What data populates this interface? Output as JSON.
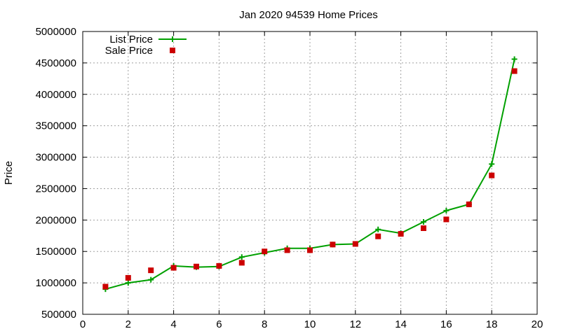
{
  "chart_data": {
    "type": "line",
    "title": "Jan 2020 94539 Home Prices",
    "xlabel": "",
    "ylabel": "Price",
    "xlim": [
      0,
      20
    ],
    "ylim": [
      500000,
      5000000
    ],
    "x_ticks": [
      "0",
      "2",
      "4",
      "6",
      "8",
      "10",
      "12",
      "14",
      "16",
      "18",
      "20"
    ],
    "y_ticks": [
      "500000",
      "1000000",
      "1500000",
      "2000000",
      "2500000",
      "3000000",
      "3500000",
      "4000000",
      "4500000",
      "5000000"
    ],
    "grid": true,
    "legend_position": "top-left",
    "series": [
      {
        "name": "List Price",
        "style": "line with plus markers",
        "color": "#00a000",
        "x": [
          1,
          2,
          3,
          4,
          5,
          6,
          7,
          8,
          9,
          10,
          11,
          12,
          13,
          14,
          15,
          16,
          17,
          18,
          19
        ],
        "y": [
          900000,
          1000000,
          1050000,
          1270000,
          1250000,
          1260000,
          1410000,
          1480000,
          1550000,
          1550000,
          1610000,
          1620000,
          1850000,
          1790000,
          1970000,
          2150000,
          2250000,
          2890000,
          4560000
        ]
      },
      {
        "name": "Sale Price",
        "style": "square markers",
        "color": "#cc0000",
        "x": [
          1,
          2,
          3,
          4,
          5,
          6,
          7,
          8,
          9,
          10,
          11,
          12,
          13,
          14,
          15,
          16,
          17,
          18,
          19
        ],
        "y": [
          940000,
          1080000,
          1200000,
          1240000,
          1260000,
          1270000,
          1320000,
          1500000,
          1520000,
          1520000,
          1610000,
          1620000,
          1740000,
          1780000,
          1870000,
          2010000,
          2250000,
          2710000,
          4370000
        ]
      }
    ]
  }
}
